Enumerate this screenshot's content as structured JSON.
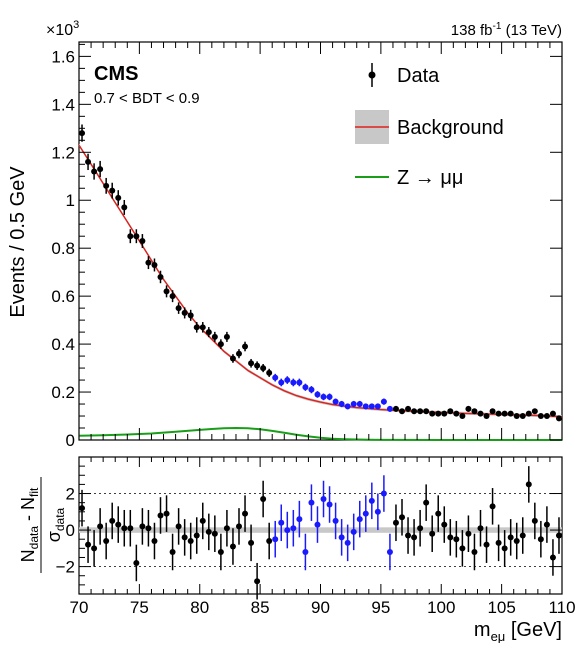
{
  "header": {
    "lumi": "138 fb",
    "lumi_exp": "-1",
    "energy": " (13 TeV)",
    "experiment": "CMS",
    "category": "0.7 < BDT < 0.9",
    "multiplier": "×10",
    "multiplier_exp": "3"
  },
  "legend": {
    "data": "Data",
    "background": "Background",
    "signal": "Z → μμ"
  },
  "colors": {
    "data": "#000000",
    "blinded": "#1a1aff",
    "background": "#e0201b",
    "band": "#c8c8c8",
    "signal": "#1a9e1a"
  },
  "chart_data": [
    {
      "type": "scatter",
      "panel": "main",
      "ylabel": "Events / 0.5 GeV",
      "xlim": [
        70,
        110
      ],
      "ylim": [
        0,
        1.66
      ],
      "y_unit_factor": 1000,
      "yticks": [
        "0",
        "0.2",
        "0.4",
        "0.6",
        "0.8",
        "1",
        "1.2",
        "1.4",
        "1.6"
      ],
      "x": [
        70.25,
        70.75,
        71.25,
        71.75,
        72.25,
        72.75,
        73.25,
        73.75,
        74.25,
        74.75,
        75.25,
        75.75,
        76.25,
        76.75,
        77.25,
        77.75,
        78.25,
        78.75,
        79.25,
        79.75,
        80.25,
        80.75,
        81.25,
        81.75,
        82.25,
        82.75,
        83.25,
        83.75,
        84.25,
        84.75,
        85.25,
        85.75,
        86.25,
        86.75,
        87.25,
        87.75,
        88.25,
        88.75,
        89.25,
        89.75,
        90.25,
        90.75,
        91.25,
        91.75,
        92.25,
        92.75,
        93.25,
        93.75,
        94.25,
        94.75,
        95.25,
        95.75,
        96.25,
        96.75,
        97.25,
        97.75,
        98.25,
        98.75,
        99.25,
        99.75,
        100.25,
        100.75,
        101.25,
        101.75,
        102.25,
        102.75,
        103.25,
        103.75,
        104.25,
        104.75,
        105.25,
        105.75,
        106.25,
        106.75,
        107.25,
        107.75,
        108.25,
        108.75,
        109.25,
        109.75
      ],
      "series": [
        {
          "name": "Data",
          "y": [
            1.28,
            1.16,
            1.12,
            1.13,
            1.06,
            1.04,
            1.01,
            0.97,
            0.85,
            0.85,
            0.83,
            0.74,
            0.73,
            0.68,
            0.62,
            0.6,
            0.55,
            0.53,
            0.52,
            0.47,
            0.47,
            0.45,
            0.43,
            0.4,
            0.43,
            0.34,
            0.36,
            0.39,
            0.32,
            0.31,
            0.3,
            0.28,
            0.26,
            0.24,
            0.25,
            0.24,
            0.24,
            0.22,
            0.21,
            0.19,
            0.18,
            0.18,
            0.16,
            0.15,
            0.14,
            0.15,
            0.15,
            0.14,
            0.14,
            0.14,
            0.16,
            0.13,
            0.13,
            0.12,
            0.13,
            0.12,
            0.12,
            0.12,
            0.11,
            0.11,
            0.11,
            0.12,
            0.11,
            0.1,
            0.13,
            0.12,
            0.11,
            0.1,
            0.12,
            0.11,
            0.11,
            0.11,
            0.1,
            0.1,
            0.11,
            0.12,
            0.1,
            0.1,
            0.11,
            0.09
          ],
          "err": [
            0.036,
            0.034,
            0.034,
            0.034,
            0.033,
            0.033,
            0.032,
            0.031,
            0.029,
            0.029,
            0.029,
            0.027,
            0.027,
            0.026,
            0.025,
            0.025,
            0.024,
            0.023,
            0.023,
            0.022,
            0.022,
            0.021,
            0.021,
            0.02,
            0.021,
            0.018,
            0.019,
            0.02,
            0.018,
            0.018,
            0.017,
            0.017,
            0.016,
            0.016,
            0.016,
            0.016,
            0.016,
            0.015,
            0.015,
            0.014,
            0.014,
            0.014,
            0.013,
            0.013,
            0.012,
            0.013,
            0.013,
            0.012,
            0.012,
            0.012,
            0.013,
            0.012,
            0.012,
            0.011,
            0.012,
            0.011,
            0.011,
            0.011,
            0.011,
            0.011,
            0.011,
            0.011,
            0.011,
            0.01,
            0.012,
            0.011,
            0.011,
            0.01,
            0.011,
            0.011,
            0.011,
            0.011,
            0.01,
            0.01,
            0.011,
            0.011,
            0.01,
            0.01,
            0.011,
            0.01
          ],
          "blinded_range": [
            86,
            96
          ]
        }
      ],
      "background_fit": {
        "name": "Background",
        "x": [
          70,
          71,
          72,
          73,
          74,
          75,
          76,
          77,
          78,
          79,
          80,
          81,
          82,
          83,
          84,
          85,
          86,
          87,
          88,
          89,
          90,
          91,
          92,
          93,
          94,
          95,
          96,
          98,
          100,
          102,
          104,
          106,
          108,
          110
        ],
        "y": [
          1.23,
          1.15,
          1.07,
          0.99,
          0.91,
          0.83,
          0.75,
          0.67,
          0.6,
          0.53,
          0.47,
          0.42,
          0.37,
          0.33,
          0.29,
          0.26,
          0.23,
          0.205,
          0.185,
          0.17,
          0.158,
          0.148,
          0.141,
          0.135,
          0.131,
          0.127,
          0.124,
          0.119,
          0.115,
          0.111,
          0.108,
          0.105,
          0.102,
          0.097
        ]
      },
      "signal": {
        "name": "Z → μμ",
        "x": [
          70,
          72,
          74,
          76,
          78,
          80,
          81,
          82,
          83,
          84,
          85,
          86,
          87,
          88,
          89,
          90,
          91,
          92,
          94,
          96,
          100,
          105,
          110
        ],
        "y": [
          0.018,
          0.02,
          0.023,
          0.027,
          0.034,
          0.042,
          0.046,
          0.049,
          0.05,
          0.049,
          0.045,
          0.038,
          0.03,
          0.022,
          0.015,
          0.009,
          0.005,
          0.003,
          0.001,
          0.0005,
          0.0002,
          0.0001,
          0.0001
        ]
      }
    },
    {
      "type": "scatter",
      "panel": "pull",
      "ylabel_num": "N",
      "ylabel_num_sub1": "data",
      "ylabel_mid": " - N",
      "ylabel_num_sub2": "fit",
      "ylabel_den": "σ",
      "ylabel_den_sub": "data",
      "xlabel": "m",
      "xlabel_sub": "eμ",
      "xlabel_unit": " [GeV]",
      "xlim": [
        70,
        110
      ],
      "ylim": [
        -3.5,
        4
      ],
      "yticks": [
        "−2",
        "0",
        "2"
      ],
      "xticks": [
        "70",
        "75",
        "80",
        "85",
        "90",
        "95",
        "100",
        "105",
        "110"
      ],
      "gridlines": [
        -2,
        2
      ],
      "y": [
        1.2,
        -0.8,
        -1.0,
        0.2,
        -0.6,
        0.5,
        0.3,
        0.1,
        0.1,
        -1.8,
        0.2,
        0.1,
        -0.6,
        0.8,
        0.9,
        -1.2,
        0.2,
        -0.4,
        -0.6,
        -0.3,
        0.5,
        -0.1,
        -0.2,
        -1.2,
        0.1,
        -0.9,
        0.2,
        0.9,
        -0.7,
        -2.8,
        1.7,
        -0.6,
        -0.5,
        0.4,
        0.0,
        0.1,
        0.6,
        -1.2,
        1.5,
        0.3,
        1.7,
        1.4,
        0.5,
        -0.4,
        -0.7,
        -0.1,
        0.6,
        0.9,
        1.6,
        1.0,
        2.0,
        -1.2,
        0.4,
        0.7,
        -0.3,
        -0.4,
        0.1,
        1.5,
        -0.2,
        0.9,
        0.3,
        -0.4,
        -0.5,
        -1.0,
        -0.2,
        -1.2,
        0.1,
        -0.8,
        1.3,
        -0.7,
        -1.0,
        -0.4,
        -0.6,
        -0.3,
        2.5,
        0.5,
        -0.5,
        0.3,
        -1.5,
        -0.3
      ],
      "err": 1
    }
  ]
}
